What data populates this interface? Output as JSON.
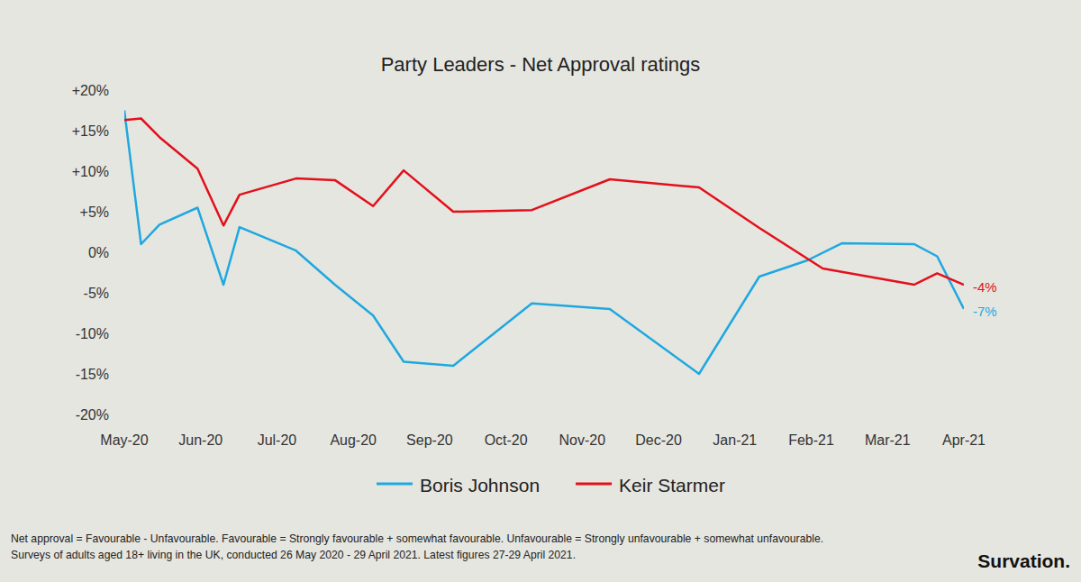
{
  "chart_data": {
    "type": "line",
    "title": "Party Leaders - Net Approval ratings",
    "xlim": [
      0,
      11
    ],
    "xticks": [
      {
        "value": 0,
        "label": "May-20"
      },
      {
        "value": 1,
        "label": "Jun-20"
      },
      {
        "value": 2,
        "label": "Jul-20"
      },
      {
        "value": 3,
        "label": "Aug-20"
      },
      {
        "value": 4,
        "label": "Sep-20"
      },
      {
        "value": 5,
        "label": "Oct-20"
      },
      {
        "value": 6,
        "label": "Nov-20"
      },
      {
        "value": 7,
        "label": "Dec-20"
      },
      {
        "value": 8,
        "label": "Jan-21"
      },
      {
        "value": 9,
        "label": "Feb-21"
      },
      {
        "value": 10,
        "label": "Mar-21"
      },
      {
        "value": 11,
        "label": "Apr-21"
      }
    ],
    "ylim": [
      -20,
      20
    ],
    "yticks": [
      {
        "value": 20,
        "label": "+20%"
      },
      {
        "value": 15,
        "label": "+15%"
      },
      {
        "value": 10,
        "label": "+10%"
      },
      {
        "value": 5,
        "label": "+5%"
      },
      {
        "value": 0,
        "label": "0%"
      },
      {
        "value": -5,
        "label": "-5%"
      },
      {
        "value": -10,
        "label": "-10%"
      },
      {
        "value": -15,
        "label": "-15%"
      },
      {
        "value": -20,
        "label": "-20%"
      }
    ],
    "grid": false,
    "legend": "bottom",
    "series": [
      {
        "name": "Boris Johnson",
        "color": "#1fa8e0",
        "x": [
          0,
          0.22,
          0.46,
          0.96,
          1.3,
          1.51,
          2.25,
          2.76,
          3.26,
          3.66,
          4.31,
          5.34,
          6.36,
          7.53,
          8.32,
          8.95,
          9.4,
          10.35,
          10.65,
          11
        ],
        "values": [
          17.5,
          1,
          3.4,
          5.5,
          -4,
          3.1,
          0.2,
          -4,
          -7.8,
          -13.5,
          -14,
          -6.3,
          -7,
          -15,
          -3,
          -1,
          1.1,
          1,
          -0.5,
          -7
        ],
        "end_label": "-7%"
      },
      {
        "name": "Keir Starmer",
        "color": "#e3101b",
        "x": [
          0,
          0.22,
          0.46,
          0.96,
          1.3,
          1.51,
          2.25,
          2.76,
          3.26,
          3.66,
          4.31,
          5.34,
          6.36,
          7.53,
          8.32,
          9.15,
          10.35,
          10.65,
          11
        ],
        "values": [
          16.3,
          16.5,
          14.2,
          10.3,
          3.3,
          7.1,
          9.1,
          8.9,
          5.7,
          10.1,
          5,
          5.2,
          9,
          8,
          3,
          -2,
          -4,
          -2.6,
          -4
        ],
        "end_label": "-4%"
      }
    ],
    "footnote": [
      "Net approval = Favourable - Unfavourable. Favourable = Strongly favourable + somewhat favourable. Unfavourable = Strongly unfavourable + somewhat unfavourable.",
      "Surveys of adults aged 18+ living in the UK, conducted 26 May 2020 - 29 April 2021.  Latest figures 27-29 April 2021."
    ],
    "source": "Survation."
  }
}
